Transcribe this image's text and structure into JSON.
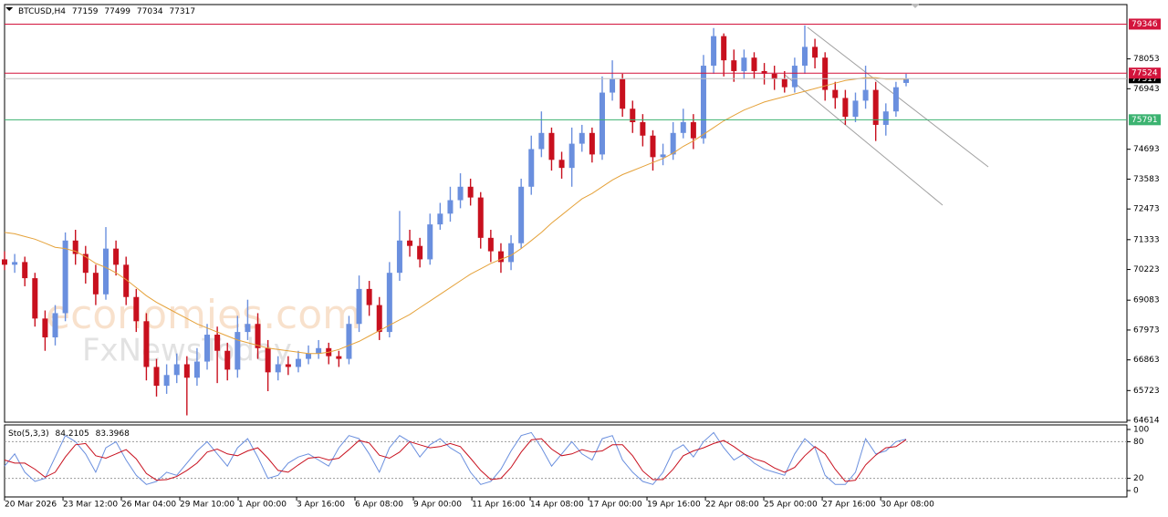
{
  "chart_data": [
    {
      "type": "candlestick",
      "title": "BTCUSD,H4",
      "watermark": [
        "economies.com",
        "FxNewsToday"
      ],
      "up_color": "#6a8fde",
      "down_color": "#c8101e",
      "open": [
        70600,
        70400,
        70500,
        69900,
        68400,
        67700,
        68600,
        71300,
        70800,
        70100,
        69300,
        71000,
        70400,
        69200,
        68300,
        66600,
        65900,
        66300,
        66700,
        66200,
        66800,
        67800,
        67200,
        66500,
        67900,
        68200,
        67300,
        66400,
        66700,
        66600,
        66900,
        67100,
        67300,
        67000,
        66900,
        68200,
        69500,
        68900,
        67900,
        70100,
        71300,
        71100,
        70600,
        71900,
        72300,
        72800,
        73300,
        72900,
        71400,
        70900,
        70500,
        71200,
        73300,
        74700,
        75300,
        74300,
        74000,
        74900,
        75300,
        74500,
        76800,
        77300,
        76200,
        75700,
        75200,
        74400,
        74500,
        75300,
        75700,
        75100,
        77800,
        78900,
        78000,
        77600,
        78100,
        77600,
        77500,
        77300,
        77000,
        77800,
        78500,
        78100,
        76900,
        76600,
        75900,
        76500,
        76900,
        75600,
        76100,
        77159
      ],
      "high": [
        70900,
        70800,
        70700,
        70100,
        68700,
        68900,
        71600,
        71700,
        71100,
        70400,
        71800,
        71300,
        70700,
        69500,
        68600,
        66900,
        66700,
        67100,
        67000,
        67300,
        68200,
        68100,
        67500,
        68500,
        69100,
        68600,
        67600,
        67000,
        67000,
        67200,
        67400,
        67600,
        67500,
        67200,
        68500,
        70000,
        69800,
        69200,
        70500,
        72400,
        71700,
        71400,
        72300,
        72700,
        73300,
        73800,
        73600,
        73100,
        71700,
        71200,
        71500,
        73600,
        75200,
        76100,
        75500,
        74600,
        75500,
        75600,
        75500,
        77400,
        78000,
        77500,
        76500,
        76000,
        75400,
        74900,
        75700,
        76200,
        76000,
        78200,
        79200,
        79000,
        78400,
        78400,
        78300,
        77900,
        77800,
        77600,
        78100,
        79300,
        78800,
        78300,
        77200,
        76900,
        76800,
        77800,
        77200,
        76400,
        77200,
        77499
      ],
      "low": [
        70200,
        70100,
        69600,
        68100,
        67200,
        67400,
        68300,
        70400,
        69700,
        68900,
        69100,
        70000,
        68900,
        67900,
        66100,
        65500,
        65600,
        66000,
        64800,
        65900,
        66500,
        66000,
        66100,
        66200,
        67600,
        66900,
        65700,
        66100,
        66300,
        66400,
        66700,
        66900,
        66700,
        66600,
        66700,
        67900,
        68500,
        67600,
        67700,
        69800,
        70700,
        70300,
        70400,
        71700,
        72000,
        72500,
        72600,
        71000,
        70500,
        70100,
        70200,
        71000,
        73000,
        74400,
        73900,
        73600,
        73300,
        74600,
        74200,
        74300,
        76500,
        75900,
        75300,
        74800,
        73900,
        74100,
        74300,
        75100,
        74700,
        74900,
        77500,
        77400,
        77200,
        77300,
        77300,
        77100,
        76900,
        76800,
        76800,
        77500,
        77700,
        76500,
        76200,
        75600,
        75700,
        76200,
        75000,
        75200,
        75900,
        77034
      ],
      "close": [
        70400,
        70500,
        69900,
        68400,
        67700,
        68600,
        71300,
        70800,
        70100,
        69300,
        71000,
        70400,
        69200,
        68300,
        66600,
        65900,
        66300,
        66700,
        66200,
        66800,
        67800,
        67200,
        66500,
        67900,
        68200,
        67300,
        66400,
        66700,
        66600,
        66900,
        67100,
        67300,
        67000,
        66900,
        68200,
        69500,
        68900,
        67900,
        70100,
        71300,
        71100,
        70600,
        71900,
        72300,
        72800,
        73300,
        72900,
        71400,
        70900,
        70500,
        71200,
        73300,
        74700,
        75300,
        74300,
        74000,
        74900,
        75300,
        74500,
        76800,
        77300,
        76200,
        75700,
        75200,
        74400,
        74500,
        75300,
        75700,
        75100,
        77800,
        78900,
        78000,
        77600,
        78100,
        77600,
        77500,
        77300,
        77000,
        77800,
        78500,
        78100,
        76900,
        76600,
        75900,
        76500,
        76900,
        75600,
        76100,
        77000,
        77317
      ],
      "ma": {
        "color": "#e5a23a",
        "values": [
          71600,
          71550,
          71450,
          71350,
          71200,
          71050,
          71000,
          70900,
          70700,
          70450,
          70300,
          70100,
          69850,
          69550,
          69250,
          69000,
          68800,
          68600,
          68400,
          68200,
          68050,
          67900,
          67750,
          67600,
          67500,
          67400,
          67300,
          67250,
          67200,
          67150,
          67100,
          67100,
          67150,
          67250,
          67400,
          67550,
          67750,
          67950,
          68150,
          68350,
          68550,
          68800,
          69050,
          69300,
          69550,
          69800,
          70050,
          70250,
          70450,
          70600,
          70750,
          71000,
          71300,
          71600,
          71950,
          72250,
          72550,
          72850,
          73050,
          73300,
          73550,
          73750,
          73900,
          74050,
          74200,
          74350,
          74550,
          74800,
          75000,
          75250,
          75500,
          75750,
          75950,
          76150,
          76300,
          76450,
          76550,
          76650,
          76750,
          76850,
          76950,
          77050,
          77150,
          77250,
          77300,
          77350,
          77350,
          77300,
          77300,
          77300
        ]
      },
      "levels": [
        {
          "value": 79346,
          "color": "#d3143c"
        },
        {
          "value": 77524,
          "color": "#d3143c"
        },
        {
          "value": 75791,
          "color": "#3cb371"
        }
      ],
      "price_line_color": "#c0c0c0",
      "xlim": [
        0,
        110.8
      ],
      "ylim": [
        64547,
        80073
      ],
      "yticks": [
        64614,
        65723,
        66863,
        67973,
        69083,
        70223,
        71333,
        72473,
        73583,
        74693,
        76943,
        78053
      ],
      "xticks": [
        {
          "value": 0,
          "label": "20 Mar 2026"
        },
        {
          "value": 5.77,
          "label": "23 Mar 12:00"
        },
        {
          "value": 11.53,
          "label": "26 Mar 04:00"
        },
        {
          "value": 17.3,
          "label": "29 Mar 10:00"
        },
        {
          "value": 23.06,
          "label": "1 Apr 00:00"
        },
        {
          "value": 28.83,
          "label": "3 Apr 16:00"
        },
        {
          "value": 34.59,
          "label": "6 Apr 08:00"
        },
        {
          "value": 40.36,
          "label": "9 Apr 00:00"
        },
        {
          "value": 46.13,
          "label": "11 Apr 16:00"
        },
        {
          "value": 51.89,
          "label": "14 Apr 08:00"
        },
        {
          "value": 57.66,
          "label": "17 Apr 00:00"
        },
        {
          "value": 63.42,
          "label": "19 Apr 16:00"
        },
        {
          "value": 69.19,
          "label": "22 Apr 08:00"
        },
        {
          "value": 74.95,
          "label": "25 Apr 00:00"
        },
        {
          "value": 80.72,
          "label": "27 Apr 16:00"
        },
        {
          "value": 86.49,
          "label": "30 Apr 08:00"
        }
      ]
    },
    {
      "type": "line",
      "title": "Sto(5,3,3)",
      "series": [
        {
          "color": "#6a8fde",
          "values": [
            40,
            60,
            30,
            15,
            20,
            55,
            90,
            80,
            60,
            30,
            70,
            80,
            50,
            25,
            10,
            15,
            30,
            25,
            45,
            65,
            80,
            60,
            40,
            70,
            85,
            55,
            20,
            25,
            45,
            55,
            60,
            50,
            40,
            70,
            90,
            85,
            60,
            30,
            70,
            90,
            80,
            55,
            75,
            85,
            70,
            60,
            30,
            10,
            15,
            35,
            65,
            90,
            95,
            70,
            40,
            60,
            80,
            60,
            50,
            85,
            90,
            50,
            30,
            15,
            10,
            30,
            65,
            75,
            55,
            80,
            95,
            70,
            50,
            60,
            45,
            35,
            30,
            25,
            60,
            85,
            70,
            25,
            10,
            10,
            30,
            85,
            60,
            65,
            80,
            84.2105
          ]
        },
        {
          "color": "#c8101e",
          "values": [
            50,
            45,
            45,
            35,
            22,
            30,
            55,
            75,
            77,
            57,
            53,
            60,
            67,
            52,
            28,
            17,
            18,
            23,
            33,
            45,
            63,
            68,
            60,
            57,
            65,
            70,
            53,
            33,
            30,
            42,
            53,
            55,
            50,
            53,
            67,
            82,
            78,
            58,
            53,
            63,
            80,
            75,
            70,
            72,
            77,
            72,
            53,
            33,
            18,
            20,
            38,
            63,
            83,
            85,
            68,
            57,
            60,
            67,
            63,
            65,
            75,
            75,
            57,
            32,
            18,
            18,
            35,
            57,
            65,
            70,
            77,
            82,
            72,
            60,
            52,
            47,
            37,
            30,
            38,
            57,
            72,
            60,
            35,
            15,
            17,
            42,
            58,
            70,
            72,
            83.3968
          ]
        }
      ],
      "levels": [
        20,
        80
      ],
      "xlim": [
        0,
        110.8
      ],
      "ylim": [
        -10.4,
        107.5
      ],
      "yticks": [
        0,
        20,
        80,
        100
      ]
    }
  ]
}
